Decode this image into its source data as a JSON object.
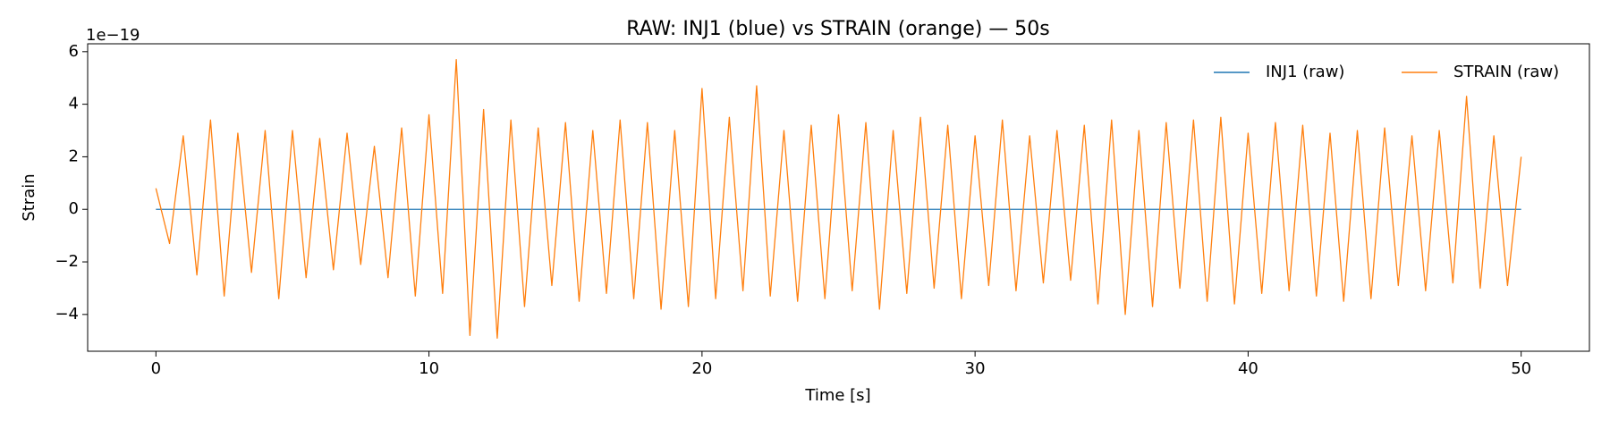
{
  "chart_data": {
    "type": "line",
    "title": "RAW: INJ1 (blue) vs STRAIN (orange) — 50s",
    "x_label": "Time [s]",
    "y_label": "Strain",
    "y_offset_label": "1e−19",
    "xlim": [
      -2.5,
      52.5
    ],
    "xticks": [
      0,
      10,
      20,
      30,
      40,
      50
    ],
    "ylim": [
      -5.4,
      6.3
    ],
    "yticks": [
      {
        "value": -4,
        "label": "−4"
      },
      {
        "value": -2,
        "label": "−2"
      },
      0,
      2,
      4,
      6
    ],
    "grid": false,
    "legend": "upper right",
    "x": [
      0,
      0.5,
      1,
      1.5,
      2,
      2.5,
      3,
      3.5,
      4,
      4.5,
      5,
      5.5,
      6,
      6.5,
      7,
      7.5,
      8,
      8.5,
      9,
      9.5,
      10,
      10.5,
      11,
      11.5,
      12,
      12.5,
      13,
      13.5,
      14,
      14.5,
      15,
      15.5,
      16,
      16.5,
      17,
      17.5,
      18,
      18.5,
      19,
      19.5,
      20,
      20.5,
      21,
      21.5,
      22,
      22.5,
      23,
      23.5,
      24,
      24.5,
      25,
      25.5,
      26,
      26.5,
      27,
      27.5,
      28,
      28.5,
      29,
      29.5,
      30,
      30.5,
      31,
      31.5,
      32,
      32.5,
      33,
      33.5,
      34,
      34.5,
      35,
      35.5,
      36,
      36.5,
      37,
      37.5,
      38,
      38.5,
      39,
      39.5,
      40,
      40.5,
      41,
      41.5,
      42,
      42.5,
      43,
      43.5,
      44,
      44.5,
      45,
      45.5,
      46,
      46.5,
      47,
      47.5,
      48,
      48.5,
      49,
      49.5,
      50
    ],
    "series": [
      {
        "name": "INJ1 (raw)",
        "color": "#1f77b4",
        "values": [
          0,
          0,
          0,
          0,
          0,
          0,
          0,
          0,
          0,
          0,
          0,
          0,
          0,
          0,
          0,
          0,
          0,
          0,
          0,
          0,
          0,
          0,
          0,
          0,
          0,
          0,
          0,
          0,
          0,
          0,
          0,
          0,
          0,
          0,
          0,
          0,
          0,
          0,
          0,
          0,
          0,
          0,
          0,
          0,
          0,
          0,
          0,
          0,
          0,
          0,
          0,
          0,
          0,
          0,
          0,
          0,
          0,
          0,
          0,
          0,
          0,
          0,
          0,
          0,
          0,
          0,
          0,
          0,
          0,
          0,
          0,
          0,
          0,
          0,
          0,
          0,
          0,
          0,
          0,
          0,
          0,
          0,
          0,
          0,
          0,
          0,
          0,
          0,
          0,
          0,
          0,
          0,
          0,
          0,
          0,
          0,
          0,
          0,
          0,
          0,
          0
        ]
      },
      {
        "name": "STRAIN (raw)",
        "color": "#ff7f0e",
        "values": [
          0.8,
          -1.3,
          2.8,
          -2.5,
          3.4,
          -3.3,
          2.9,
          -2.4,
          3.0,
          -3.4,
          3.0,
          -2.6,
          2.7,
          -2.3,
          2.9,
          -2.1,
          2.4,
          -2.6,
          3.1,
          -3.3,
          3.6,
          -3.2,
          5.7,
          -4.8,
          3.8,
          -4.9,
          3.4,
          -3.7,
          3.1,
          -2.9,
          3.3,
          -3.5,
          3.0,
          -3.2,
          3.4,
          -3.4,
          3.3,
          -3.8,
          3.0,
          -3.7,
          4.6,
          -3.4,
          3.5,
          -3.1,
          4.7,
          -3.3,
          3.0,
          -3.5,
          3.2,
          -3.4,
          3.6,
          -3.1,
          3.3,
          -3.8,
          3.0,
          -3.2,
          3.5,
          -3.0,
          3.2,
          -3.4,
          2.8,
          -2.9,
          3.4,
          -3.1,
          2.8,
          -2.8,
          3.0,
          -2.7,
          3.2,
          -3.6,
          3.4,
          -4.0,
          3.0,
          -3.7,
          3.3,
          -3.0,
          3.4,
          -3.5,
          3.5,
          -3.6,
          2.9,
          -3.2,
          3.3,
          -3.1,
          3.2,
          -3.3,
          2.9,
          -3.5,
          3.0,
          -3.4,
          3.1,
          -2.9,
          2.8,
          -3.1,
          3.0,
          -2.8,
          4.3,
          -3.0,
          2.8,
          -2.9,
          2.0
        ]
      }
    ]
  }
}
